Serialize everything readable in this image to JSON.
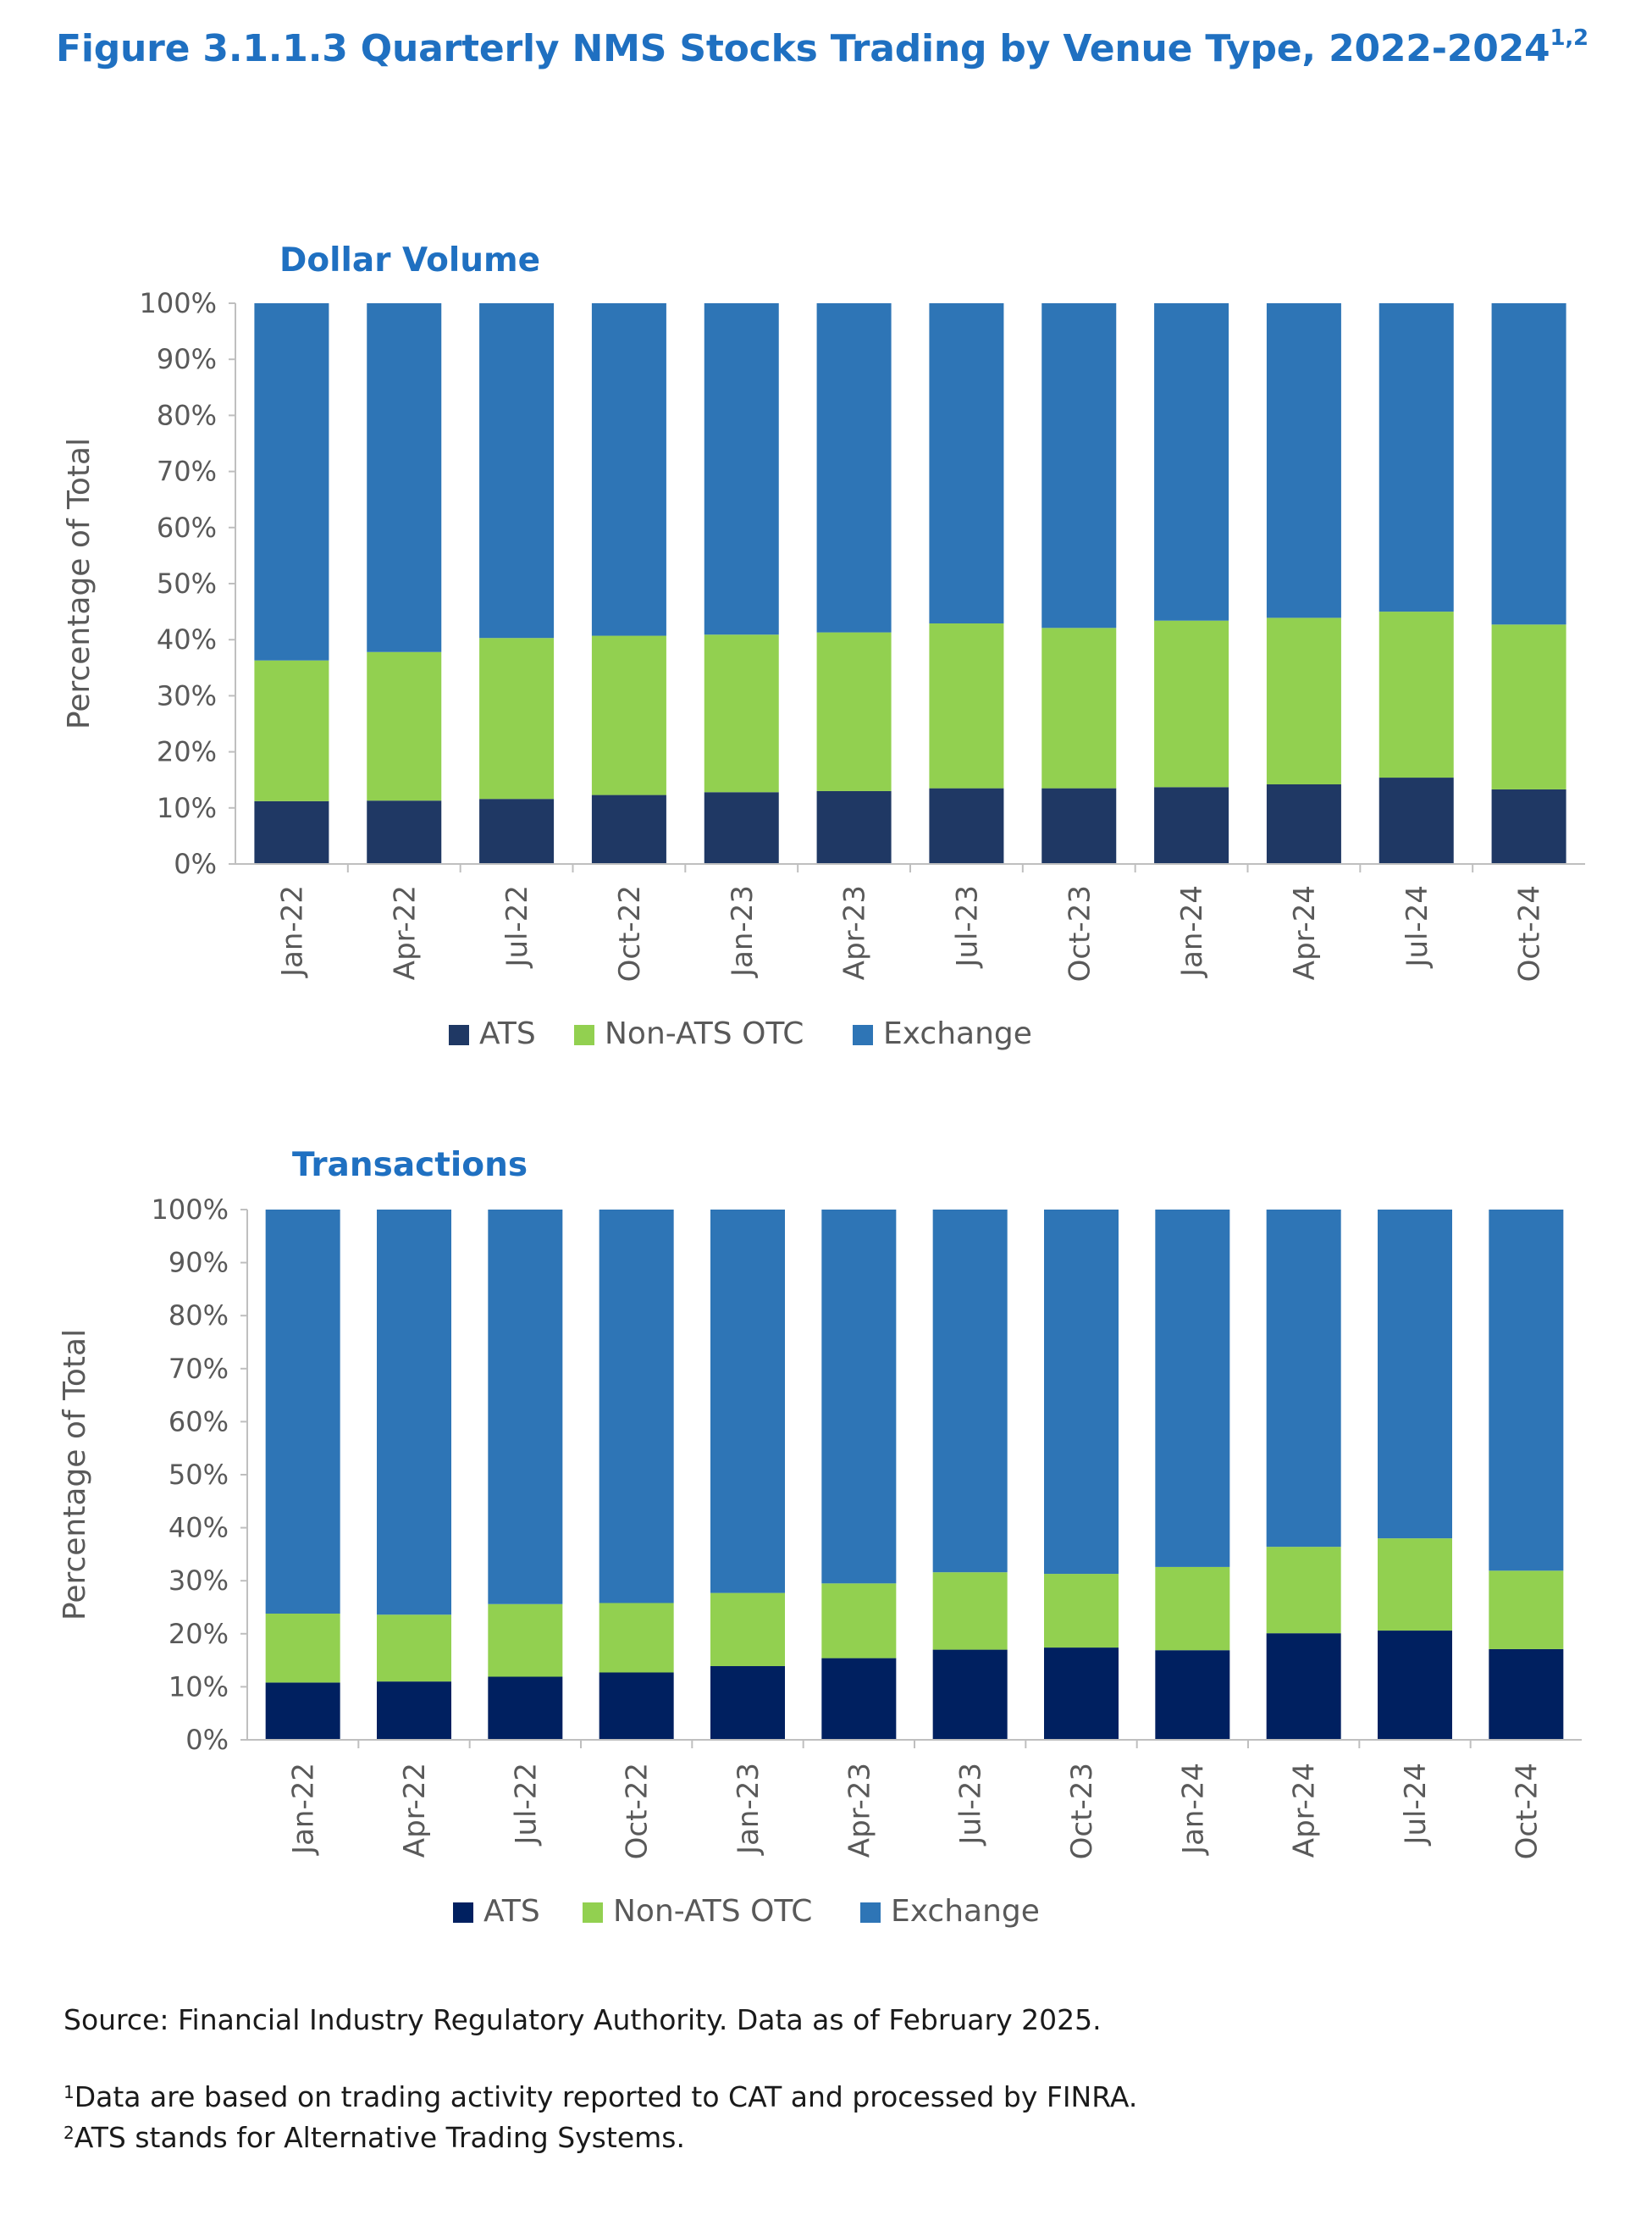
{
  "figure": {
    "title": "Figure 3.1.1.3 Quarterly NMS Stocks Trading by Venue Type, 2022-2024",
    "title_sup": "1,2"
  },
  "colors": {
    "ats_dollar": "#1F3864",
    "ats_transactions": "#002060",
    "non_ats_otc": "#92D050",
    "exchange": "#2E75B6",
    "title": "#1F70C1",
    "axis_text": "#595959"
  },
  "chart_data": [
    {
      "type": "bar",
      "stacked": true,
      "title": "Dollar Volume",
      "ylabel": "Percentage of Total",
      "xlabel": "",
      "ylim": [
        0,
        100
      ],
      "yticks": [
        "0%",
        "10%",
        "20%",
        "30%",
        "40%",
        "50%",
        "60%",
        "70%",
        "80%",
        "90%",
        "100%"
      ],
      "categories": [
        "Jan-22",
        "Apr-22",
        "Jul-22",
        "Oct-22",
        "Jan-23",
        "Apr-23",
        "Jul-23",
        "Oct-23",
        "Jan-24",
        "Apr-24",
        "Jul-24",
        "Oct-24"
      ],
      "series": [
        {
          "name": "ATS",
          "color": "#1F3864",
          "values": [
            11.2,
            11.3,
            11.6,
            12.3,
            12.8,
            13.0,
            13.5,
            13.5,
            13.7,
            14.2,
            15.4,
            13.3
          ]
        },
        {
          "name": "Non-ATS OTC",
          "color": "#92D050",
          "values": [
            25.1,
            26.5,
            28.7,
            28.4,
            28.1,
            28.3,
            29.4,
            28.6,
            29.7,
            29.7,
            29.6,
            29.4
          ]
        },
        {
          "name": "Exchange",
          "color": "#2E75B6",
          "values": [
            63.7,
            62.2,
            59.7,
            59.3,
            59.1,
            58.7,
            57.1,
            57.9,
            56.6,
            56.1,
            55.0,
            57.3
          ]
        }
      ],
      "legend": "bottom"
    },
    {
      "type": "bar",
      "stacked": true,
      "title": "Transactions",
      "ylabel": "Percentage of Total",
      "xlabel": "",
      "ylim": [
        0,
        100
      ],
      "yticks": [
        "0%",
        "10%",
        "20%",
        "30%",
        "40%",
        "50%",
        "60%",
        "70%",
        "80%",
        "90%",
        "100%"
      ],
      "categories": [
        "Jan-22",
        "Apr-22",
        "Jul-22",
        "Oct-22",
        "Jan-23",
        "Apr-23",
        "Jul-23",
        "Oct-23",
        "Jan-24",
        "Apr-24",
        "Jul-24",
        "Oct-24"
      ],
      "series": [
        {
          "name": "ATS",
          "color": "#002060",
          "values": [
            10.8,
            11.0,
            11.9,
            12.7,
            13.9,
            15.4,
            17.0,
            17.4,
            16.9,
            20.1,
            20.6,
            17.1
          ]
        },
        {
          "name": "Non-ATS OTC",
          "color": "#92D050",
          "values": [
            13.0,
            12.6,
            13.7,
            13.1,
            13.8,
            14.1,
            14.6,
            13.9,
            15.7,
            16.3,
            17.4,
            14.8
          ]
        },
        {
          "name": "Exchange",
          "color": "#2E75B6",
          "values": [
            76.2,
            76.4,
            74.4,
            74.2,
            72.3,
            70.5,
            68.4,
            68.7,
            67.4,
            63.6,
            62.0,
            68.1
          ]
        }
      ],
      "legend": "bottom"
    }
  ],
  "footer": {
    "source": "Source: Financial Industry Regulatory Authority. Data as of February 2025.",
    "note1_sup": "1",
    "note1": "Data are based on trading activity reported to CAT and processed by FINRA.",
    "note2_sup": "2",
    "note2": "ATS stands for Alternative Trading Systems."
  }
}
